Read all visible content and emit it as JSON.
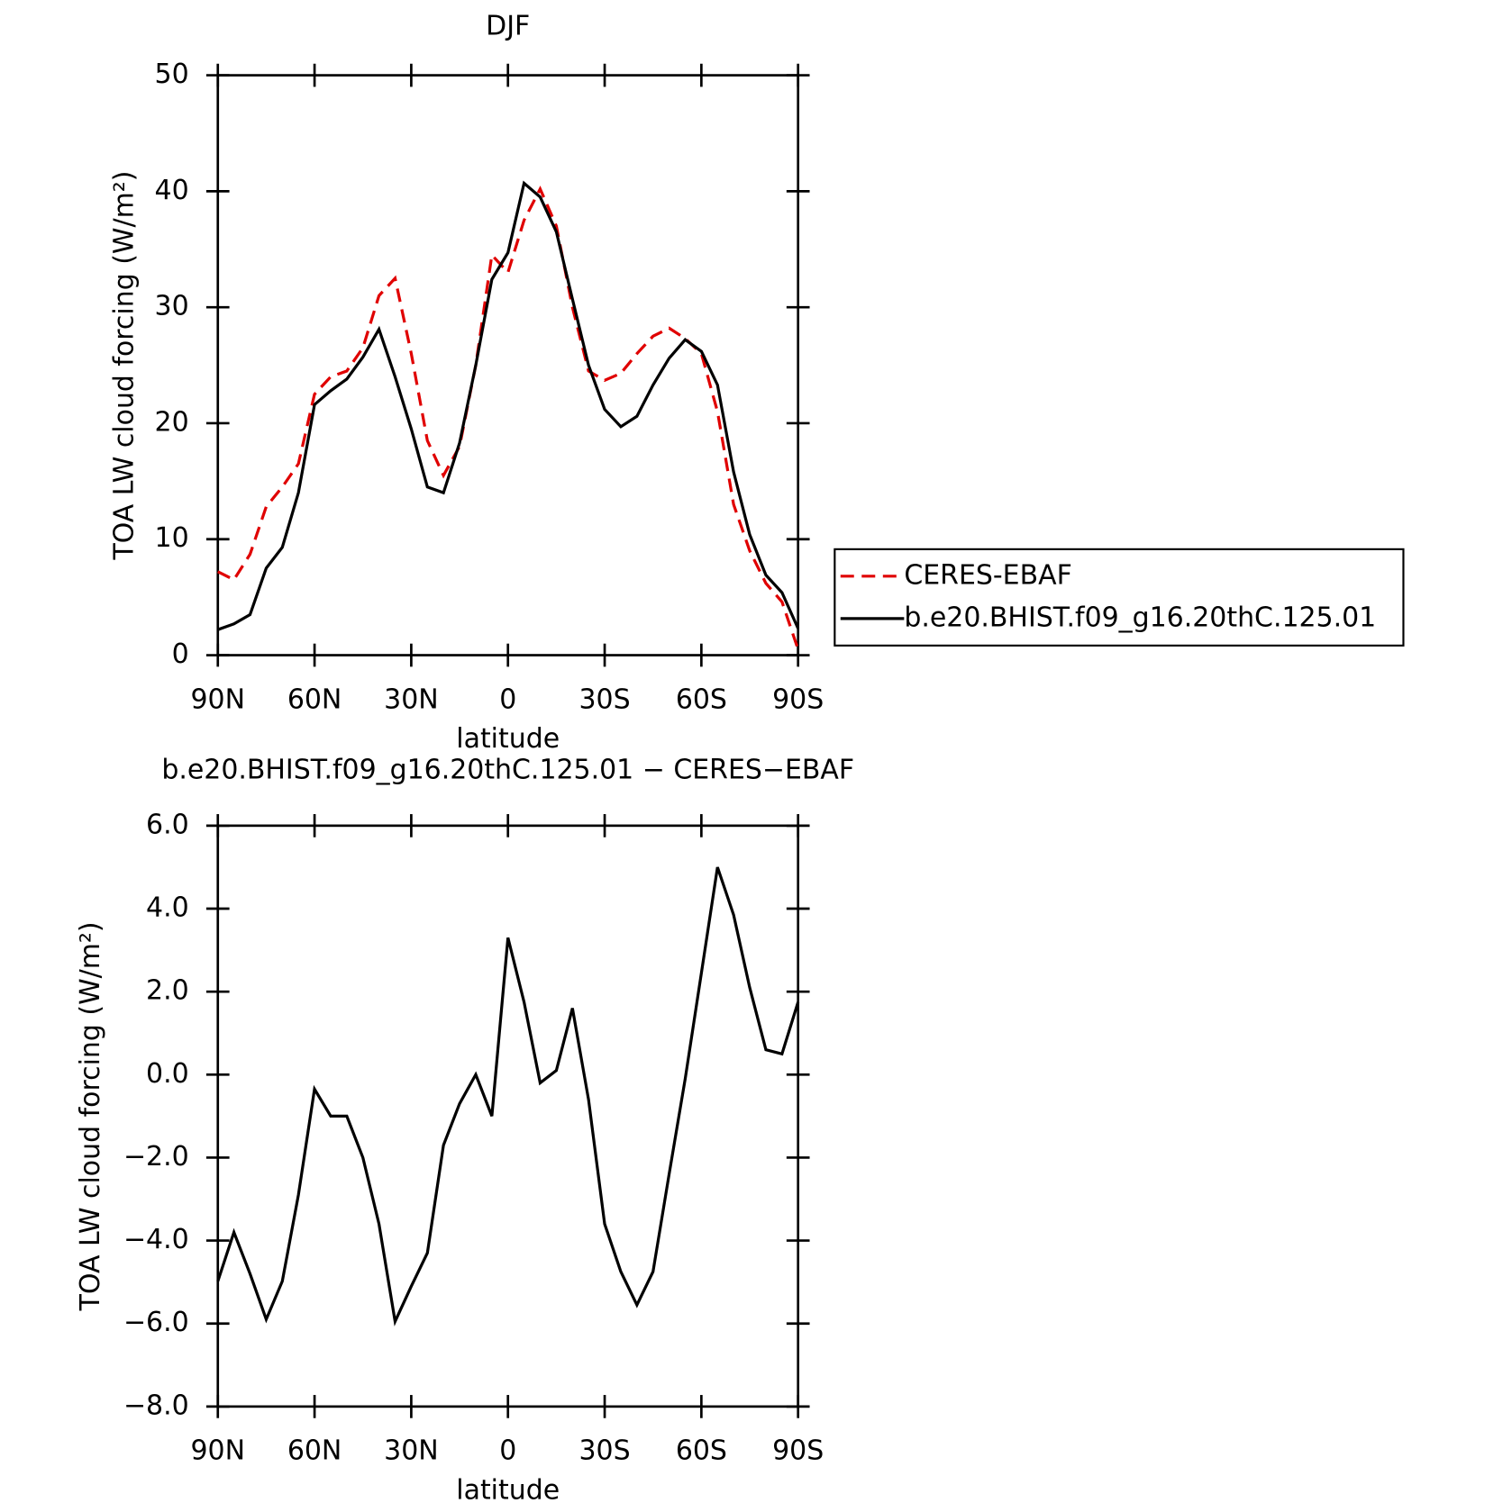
{
  "chart_data": [
    {
      "type": "line",
      "title": "DJF",
      "xlabel": "latitude",
      "ylabel": "TOA LW cloud forcing (W/m²)",
      "x": [
        90,
        85,
        80,
        75,
        70,
        65,
        60,
        55,
        50,
        45,
        40,
        35,
        30,
        25,
        20,
        15,
        10,
        5,
        0,
        -5,
        -10,
        -15,
        -20,
        -25,
        -30,
        -35,
        -40,
        -45,
        -50,
        -55,
        -60,
        -65,
        -70,
        -75,
        -80,
        -85,
        -90
      ],
      "series": [
        {
          "name": "CERES-EBAF",
          "color": "#e00000",
          "line_style": "dashed",
          "values": [
            7.2,
            6.5,
            8.7,
            12.8,
            14.5,
            16.5,
            22.5,
            24,
            24.5,
            26.5,
            31,
            32.5,
            26,
            18.5,
            15.5,
            18,
            25,
            34.5,
            33,
            37.5,
            40.2,
            37,
            30,
            24.5,
            23.7,
            24.3,
            26,
            27.5,
            28.2,
            27.3,
            26,
            21,
            13,
            9,
            6.2,
            4.6,
            0.5
          ]
        },
        {
          "name": "b.e20.BHIST.f09_g16.20thC.125.01",
          "color": "#000000",
          "line_style": "solid",
          "values": [
            2.2,
            2.7,
            3.5,
            7.5,
            9.3,
            14,
            21.6,
            22.8,
            23.8,
            25.7,
            28.1,
            24,
            19.5,
            14.5,
            14,
            18.3,
            25,
            32.4,
            34.7,
            40.7,
            39.5,
            36.5,
            30.7,
            25,
            21.2,
            19.7,
            20.6,
            23.3,
            25.6,
            27.2,
            26.2,
            23.3,
            15.8,
            10.4,
            6.9,
            5.4,
            2.3
          ]
        }
      ],
      "xlim": [
        90,
        -90
      ],
      "xticks": [
        {
          "value": 90,
          "label": "90N"
        },
        {
          "value": 60,
          "label": "60N"
        },
        {
          "value": 30,
          "label": "30N"
        },
        0,
        {
          "value": -30,
          "label": "30S"
        },
        {
          "value": -60,
          "label": "60S"
        },
        {
          "value": -90,
          "label": "90S"
        }
      ],
      "ylim": [
        0,
        50
      ],
      "yticks": [
        0,
        10,
        20,
        30,
        40,
        50
      ],
      "legend": "right"
    },
    {
      "type": "line",
      "title": "b.e20.BHIST.f09_g16.20thC.125.01 − CERES−EBAF",
      "xlabel": "latitude",
      "ylabel": "TOA LW cloud forcing (W/m²)",
      "x": [
        90,
        85,
        80,
        75,
        70,
        65,
        60,
        55,
        50,
        45,
        40,
        35,
        30,
        25,
        20,
        15,
        10,
        5,
        0,
        -5,
        -10,
        -15,
        -20,
        -25,
        -30,
        -35,
        -40,
        -45,
        -50,
        -55,
        -60,
        -65,
        -70,
        -75,
        -80,
        -85,
        -90
      ],
      "series": [
        {
          "color": "#000000",
          "line_style": "solid",
          "values": [
            -4.98,
            -3.8,
            -4.8,
            -5.9,
            -4.98,
            -2.9,
            -0.35,
            -1.0,
            -1.0,
            -2.0,
            -3.6,
            -5.95,
            -5.1,
            -4.3,
            -1.7,
            -0.7,
            0.0,
            -1.0,
            3.3,
            1.75,
            -0.2,
            0.1,
            1.6,
            -0.6,
            -3.6,
            -4.75,
            -5.55,
            -4.75,
            -2.4,
            -0.1,
            2.45,
            5.0,
            3.85,
            2.1,
            0.6,
            0.5,
            1.75
          ]
        }
      ],
      "xlim": [
        90,
        -90
      ],
      "xticks": [
        {
          "value": 90,
          "label": "90N"
        },
        {
          "value": 60,
          "label": "60N"
        },
        {
          "value": 30,
          "label": "30N"
        },
        0,
        {
          "value": -30,
          "label": "30S"
        },
        {
          "value": -60,
          "label": "60S"
        },
        {
          "value": -90,
          "label": "90S"
        }
      ],
      "ylim": [
        -8,
        6
      ],
      "yticks": [
        {
          "value": -8,
          "label": "−8.0"
        },
        {
          "value": -6,
          "label": "−6.0"
        },
        {
          "value": -4,
          "label": "−4.0"
        },
        {
          "value": -2,
          "label": "−2.0"
        },
        {
          "value": 0,
          "label": "0.0"
        },
        {
          "value": 2,
          "label": "2.0"
        },
        {
          "value": 4,
          "label": "4.0"
        },
        {
          "value": 6,
          "label": "6.0"
        }
      ]
    }
  ]
}
